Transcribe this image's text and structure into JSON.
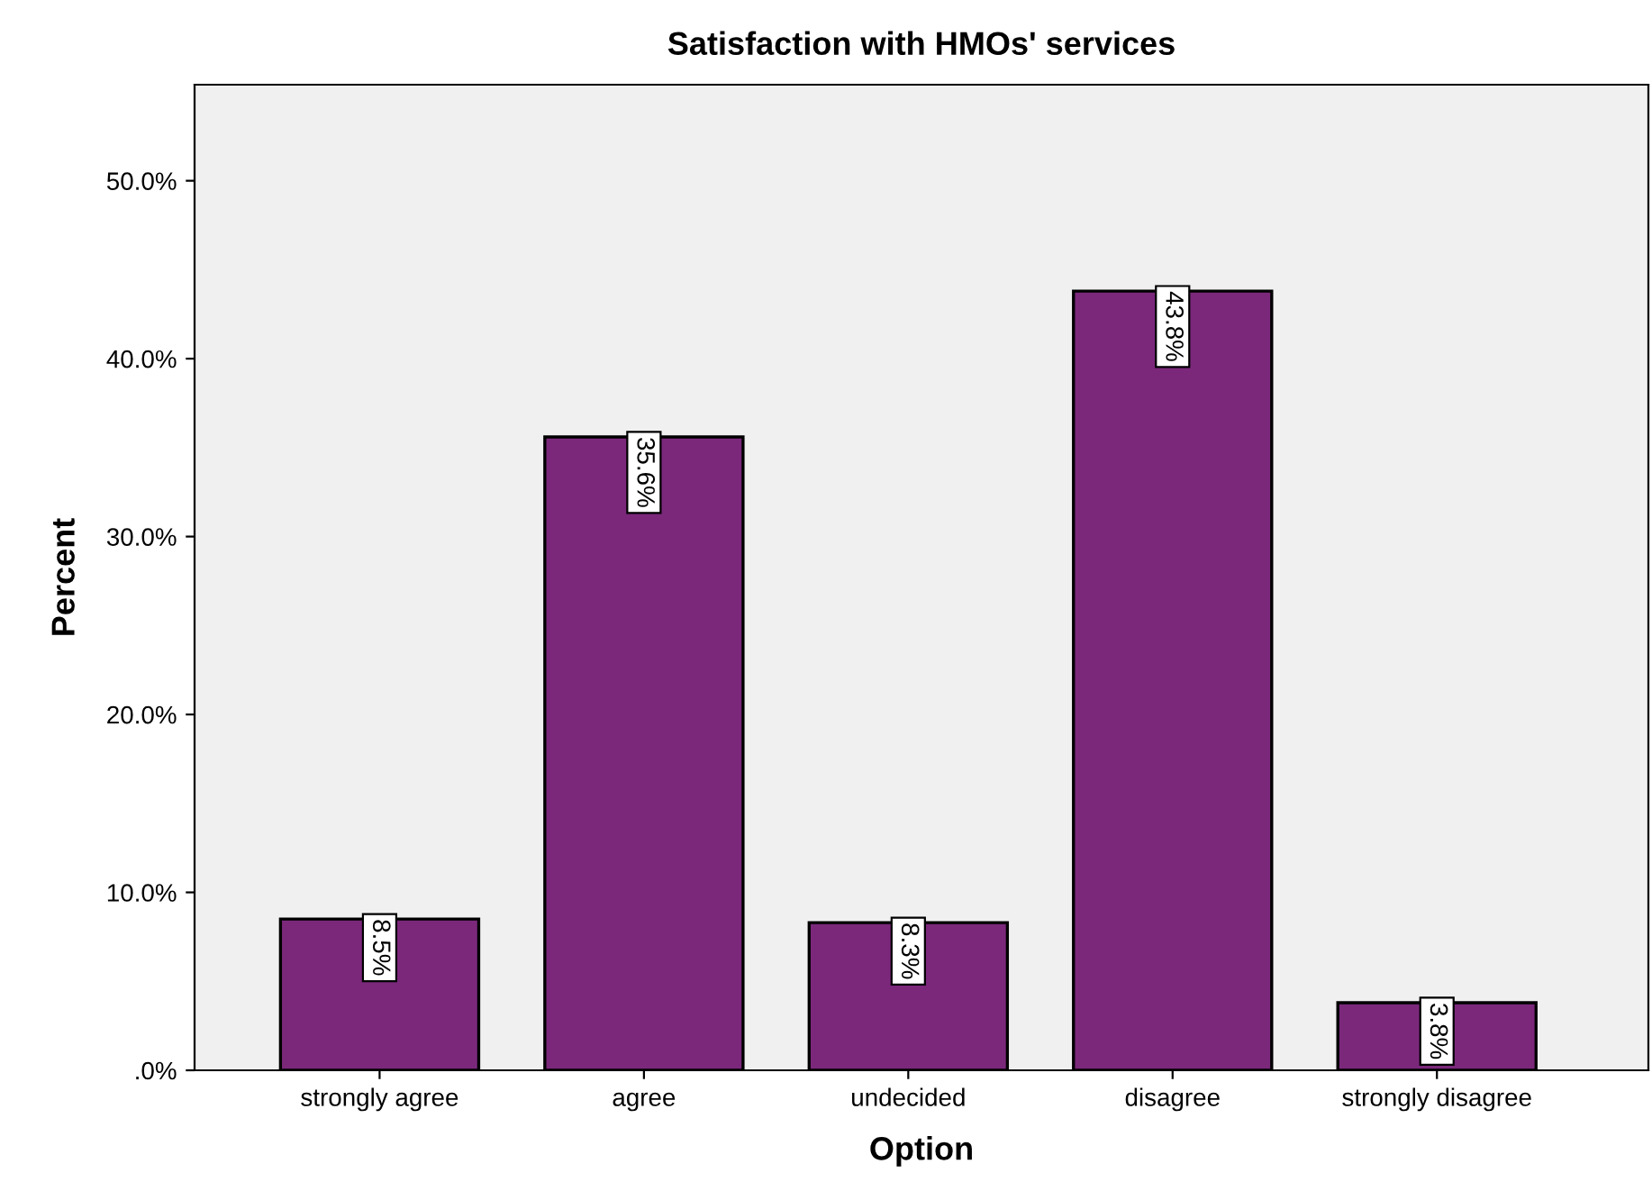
{
  "chart_data": {
    "type": "bar",
    "title": "Satisfaction with HMOs' services",
    "xlabel": "Option",
    "ylabel": "Percent",
    "categories": [
      "strongly agree",
      "agree",
      "undecided",
      "disagree",
      "strongly disagree"
    ],
    "values": [
      8.5,
      35.6,
      8.3,
      43.8,
      3.8
    ],
    "color": "#7b287b",
    "value_labels": [
      "8.5%",
      "35.6%",
      "8.3%",
      "43.8%",
      "3.8%"
    ],
    "ylim": [
      0,
      55.4
    ],
    "yticks": [
      {
        "value": 0,
        "label": ".0%"
      },
      {
        "value": 10,
        "label": "10.0%"
      },
      {
        "value": 20,
        "label": "20.0%"
      },
      {
        "value": 30,
        "label": "30.0%"
      },
      {
        "value": 40,
        "label": "40.0%"
      },
      {
        "value": 50,
        "label": "50.0%"
      }
    ],
    "grid": false,
    "legend": false
  }
}
